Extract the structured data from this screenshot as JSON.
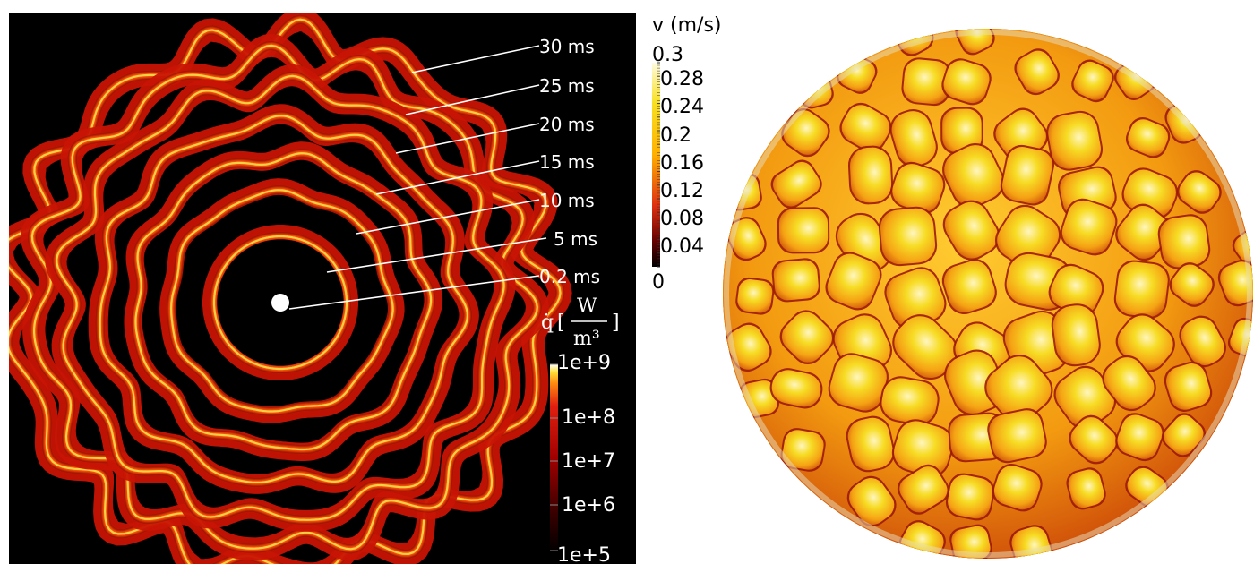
{
  "left": {
    "time_labels": [
      "30 ms",
      "25 ms",
      "20 ms",
      "15 ms",
      "10 ms",
      "5 ms",
      "0.2 ms"
    ],
    "colorbar": {
      "quantity_symbol": "q̇",
      "unit_numerator": "W",
      "unit_denominator": "m³",
      "ticks": [
        "1e+9",
        "1e+8",
        "1e+7",
        "1e+6",
        "1e+5"
      ],
      "colors": [
        "#ffffff",
        "#ffe23a",
        "#ff8a10",
        "#e02010",
        "#a00000",
        "#3c0000",
        "#000000"
      ]
    }
  },
  "right": {
    "colorbar": {
      "title": "v (m/s)",
      "max_label": "0.3",
      "min_label": "0",
      "ticks": [
        "0.28",
        "0.24",
        "0.2",
        "0.16",
        "0.12",
        "0.08",
        "0.04"
      ],
      "colors": [
        "#fffbe0",
        "#f8e020",
        "#ffb000",
        "#e03010",
        "#600000",
        "#000000"
      ]
    }
  }
}
